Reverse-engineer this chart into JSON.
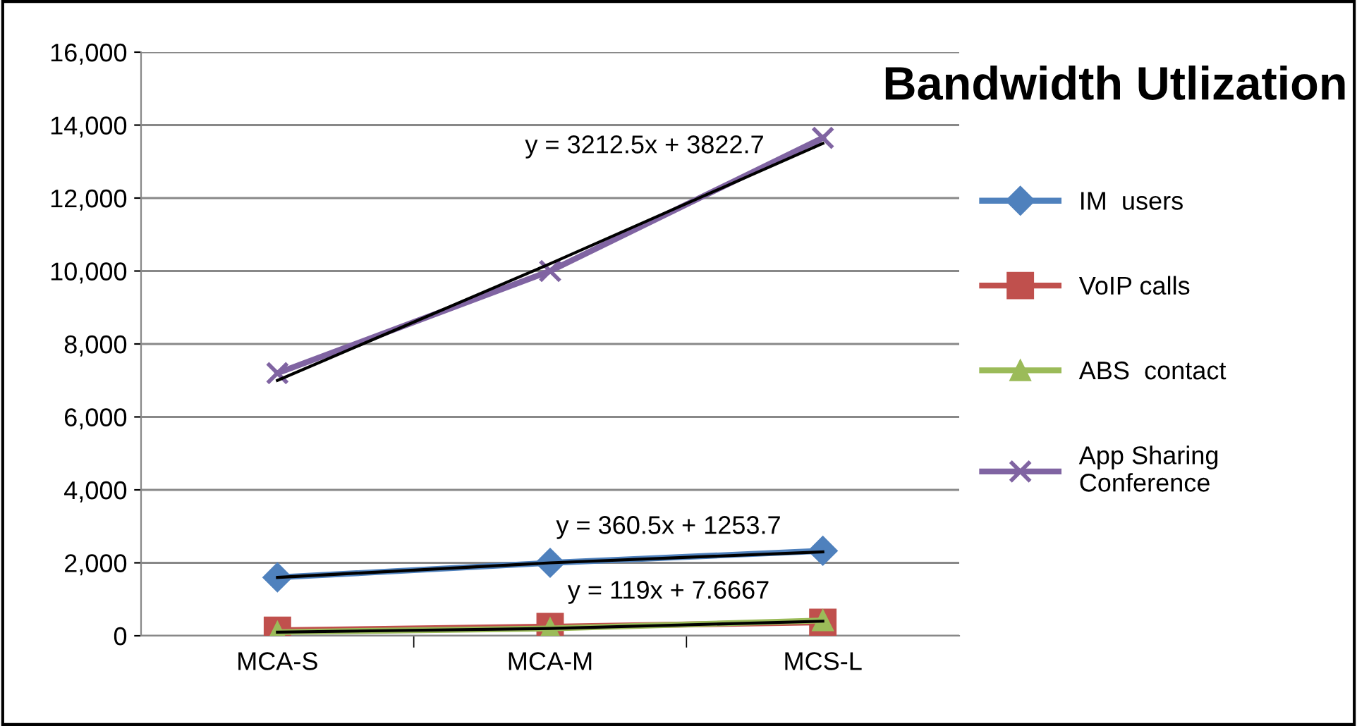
{
  "chart_data": {
    "type": "line",
    "title": "Bandwidth Utlization",
    "categories": [
      "MCA-S",
      "MCA-M",
      "MCS-L"
    ],
    "series": [
      {
        "name": "IM  users",
        "color": "#4f81bd",
        "values": [
          1600,
          2000,
          2330
        ],
        "marker": "diamond"
      },
      {
        "name": "VoIP calls",
        "color": "#c0504d",
        "values": [
          150,
          250,
          370
        ],
        "marker": "square"
      },
      {
        "name": "ABS  contact",
        "color": "#9bbb59",
        "values": [
          100,
          200,
          420
        ],
        "marker": "triangle"
      },
      {
        "name": "App Sharing\nConference",
        "color": "#8064a2",
        "values": [
          7200,
          10000,
          13650
        ],
        "marker": "cross"
      },
      {
        "color": "#000000",
        "values": [
          7000,
          10200,
          13500
        ],
        "marker": "none"
      },
      {
        "color": "#000000",
        "values": [
          1600,
          2000,
          2300
        ],
        "marker": "none"
      },
      {
        "color": "#000000",
        "values": [
          100,
          200,
          400
        ],
        "marker": "none"
      }
    ],
    "annotations": [
      "y = 3212.5x + 3822.7",
      "y = 360.5x + 1253.7",
      "y = 119x + 7.6667"
    ],
    "ylim": [
      0,
      16000
    ],
    "yticks": [
      {
        "value": 0,
        "label": "0"
      },
      {
        "value": 2000,
        "label": "2,000"
      },
      {
        "value": 4000,
        "label": "4,000"
      },
      {
        "value": 6000,
        "label": "6,000"
      },
      {
        "value": 8000,
        "label": "8,000"
      },
      {
        "value": 10000,
        "label": "10,000"
      },
      {
        "value": 12000,
        "label": "12,000"
      },
      {
        "value": 14000,
        "label": "14,000"
      },
      {
        "value": 16000,
        "label": "16,000"
      }
    ],
    "grid": "y",
    "legend": "right",
    "line_style": "solid"
  }
}
